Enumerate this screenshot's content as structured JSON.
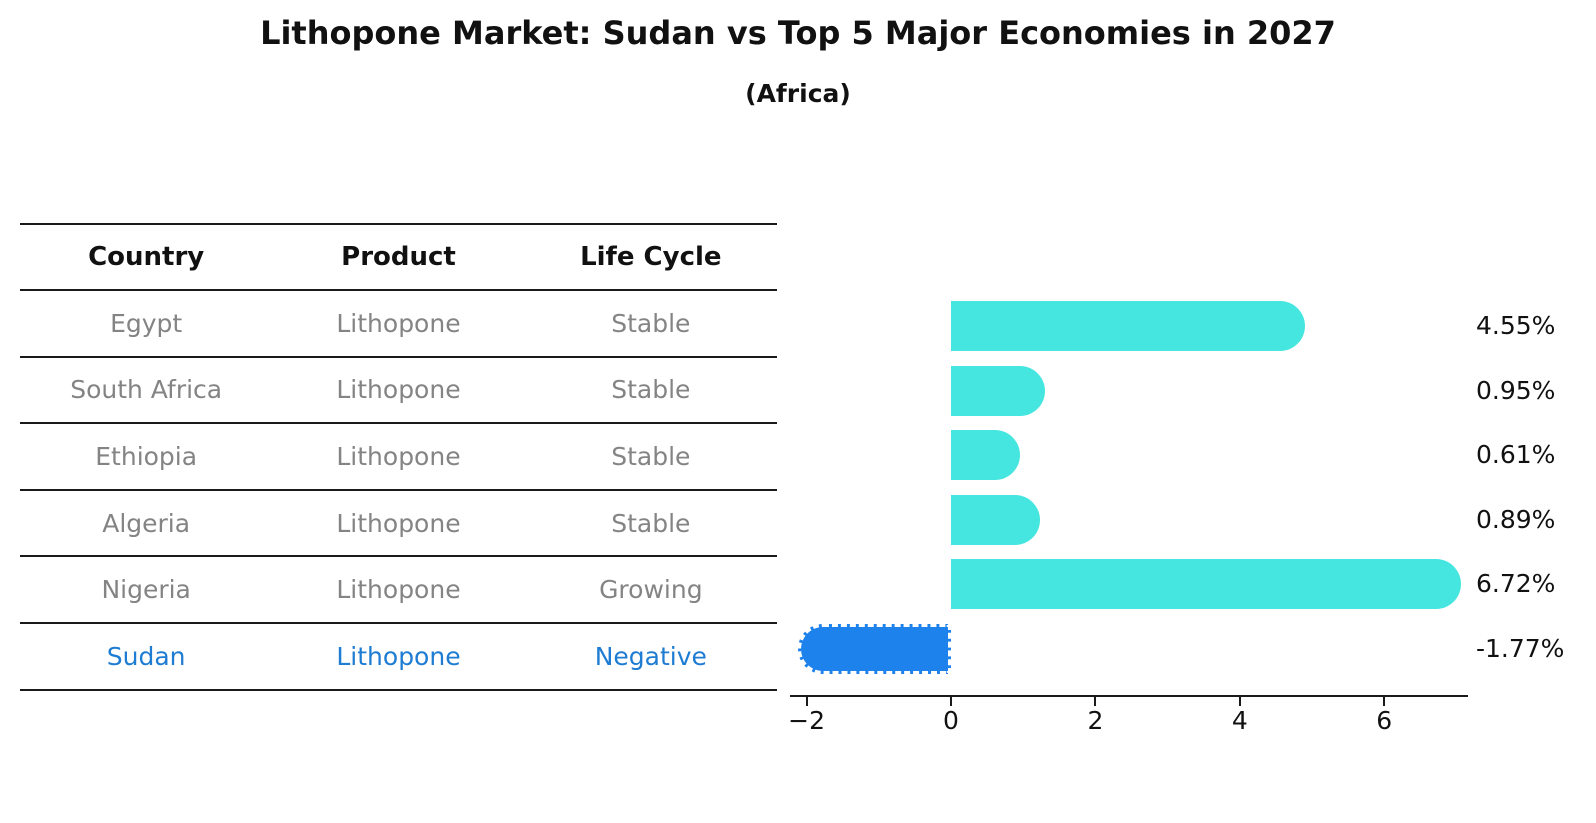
{
  "chart_data": {
    "type": "bar",
    "orientation": "horizontal",
    "title": "Lithopone Market: Sudan vs Top 5 Major Economies in 2027",
    "subtitle": "(Africa)",
    "categories": [
      "Egypt",
      "South Africa",
      "Ethiopia",
      "Algeria",
      "Nigeria",
      "Sudan"
    ],
    "values": [
      4.55,
      0.95,
      0.61,
      0.89,
      6.72,
      -1.77
    ],
    "value_labels": [
      "4.55%",
      "0.95%",
      "0.61%",
      "0.89%",
      "6.72%",
      "-1.77%"
    ],
    "highlight_index": 5,
    "x_ticks": [
      -2,
      0,
      2,
      4,
      6
    ],
    "x_tick_labels": [
      "−2",
      "0",
      "2",
      "4",
      "6"
    ],
    "xlim": [
      -2.24,
      7.18
    ],
    "grid": false,
    "legend": "none",
    "colors": {
      "bar_default": "#45E6E0",
      "bar_highlight": "#1E82EC",
      "highlight_text": "#1E7CD2",
      "table_text": "#848484",
      "axis": "#1a1a1a"
    }
  },
  "table": {
    "headers": [
      "Country",
      "Product",
      "Life Cycle"
    ],
    "rows": [
      {
        "country": "Egypt",
        "product": "Lithopone",
        "life_cycle": "Stable",
        "highlight": false
      },
      {
        "country": "South Africa",
        "product": "Lithopone",
        "life_cycle": "Stable",
        "highlight": false
      },
      {
        "country": "Ethiopia",
        "product": "Lithopone",
        "life_cycle": "Stable",
        "highlight": false
      },
      {
        "country": "Algeria",
        "product": "Lithopone",
        "life_cycle": "Stable",
        "highlight": false
      },
      {
        "country": "Nigeria",
        "product": "Lithopone",
        "life_cycle": "Growing",
        "highlight": false
      },
      {
        "country": "Sudan",
        "product": "Lithopone",
        "life_cycle": "Negative",
        "highlight": true
      }
    ]
  }
}
